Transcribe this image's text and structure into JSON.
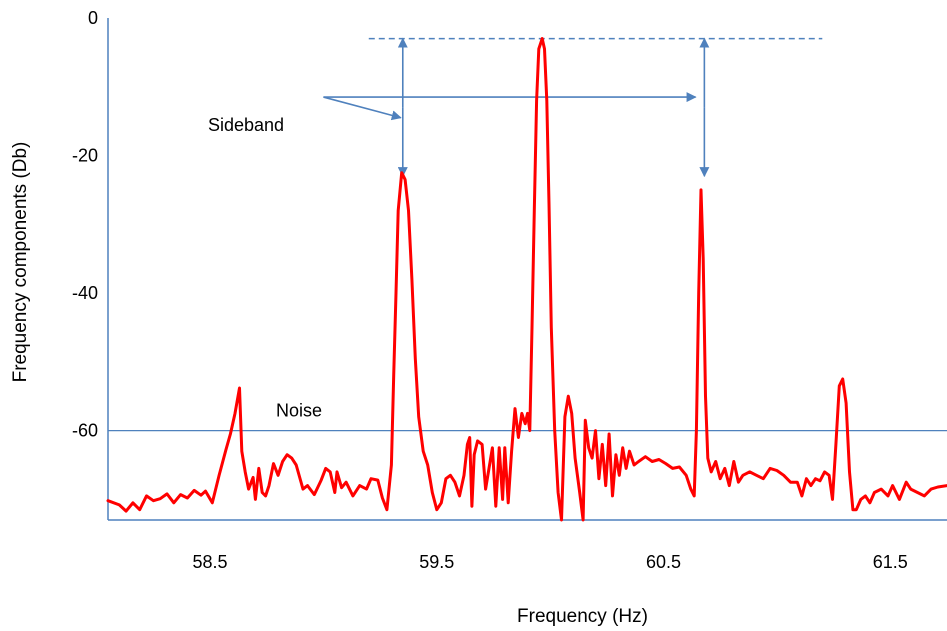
{
  "chart_data": {
    "type": "line",
    "title": "",
    "xlabel": "Frequency (Hz)",
    "ylabel": "Frequency components (Db)",
    "xlim": [
      58.05,
      61.75
    ],
    "ylim": [
      -73,
      0
    ],
    "x_ticks": [
      {
        "value": 58.5,
        "label": "58.5"
      },
      {
        "value": 59.5,
        "label": "59.5"
      },
      {
        "value": 60.5,
        "label": "60.5"
      },
      {
        "value": 61.5,
        "label": "61.5"
      }
    ],
    "y_ticks": [
      {
        "value": 0,
        "label": "0"
      },
      {
        "value": -20,
        "label": "-20"
      },
      {
        "value": -40,
        "label": "-40"
      },
      {
        "value": -60,
        "label": "-60"
      }
    ],
    "grid": false,
    "legend": "none",
    "colors": {
      "signal": "#ff0000",
      "annotation": "#4f81bd",
      "axis": "#4f81bd"
    },
    "series": [
      {
        "values": [
          [
            58.05,
            -70.2
          ],
          [
            58.1,
            -70.8
          ],
          [
            58.13,
            -71.7
          ],
          [
            58.16,
            -70.5
          ],
          [
            58.19,
            -71.5
          ],
          [
            58.22,
            -69.5
          ],
          [
            58.25,
            -70.2
          ],
          [
            58.28,
            -69.9
          ],
          [
            58.31,
            -69.2
          ],
          [
            58.34,
            -70.5
          ],
          [
            58.37,
            -69.3
          ],
          [
            58.4,
            -69.8
          ],
          [
            58.43,
            -68.7
          ],
          [
            58.46,
            -69.4
          ],
          [
            58.48,
            -68.8
          ],
          [
            58.51,
            -70.5
          ],
          [
            58.54,
            -66.5
          ],
          [
            58.57,
            -62.8
          ],
          [
            58.59,
            -60.5
          ],
          [
            58.61,
            -57.5
          ],
          [
            58.63,
            -53.8
          ],
          [
            58.64,
            -63.0
          ],
          [
            58.655,
            -66.0
          ],
          [
            58.67,
            -68.5
          ],
          [
            58.69,
            -66.8
          ],
          [
            58.7,
            -70.0
          ],
          [
            58.715,
            -65.5
          ],
          [
            58.73,
            -69.0
          ],
          [
            58.745,
            -69.5
          ],
          [
            58.76,
            -68.0
          ],
          [
            58.78,
            -64.8
          ],
          [
            58.8,
            -66.5
          ],
          [
            58.82,
            -64.5
          ],
          [
            58.84,
            -63.5
          ],
          [
            58.86,
            -64.0
          ],
          [
            58.88,
            -65.0
          ],
          [
            58.91,
            -68.5
          ],
          [
            58.93,
            -68.0
          ],
          [
            58.96,
            -69.3
          ],
          [
            58.99,
            -67.2
          ],
          [
            59.01,
            -65.5
          ],
          [
            59.03,
            -66.0
          ],
          [
            59.05,
            -69.0
          ],
          [
            59.06,
            -66.0
          ],
          [
            59.08,
            -68.3
          ],
          [
            59.1,
            -67.5
          ],
          [
            59.13,
            -69.5
          ],
          [
            59.16,
            -68.0
          ],
          [
            59.19,
            -68.5
          ],
          [
            59.21,
            -67.0
          ],
          [
            59.24,
            -67.2
          ],
          [
            59.26,
            -69.8
          ],
          [
            59.28,
            -71.5
          ],
          [
            59.3,
            -65.0
          ],
          [
            59.31,
            -52.0
          ],
          [
            59.32,
            -40.0
          ],
          [
            59.33,
            -28.0
          ],
          [
            59.345,
            -22.5
          ],
          [
            59.36,
            -23.5
          ],
          [
            59.375,
            -28.0
          ],
          [
            59.39,
            -38.0
          ],
          [
            59.405,
            -49.5
          ],
          [
            59.42,
            -58.0
          ],
          [
            59.44,
            -63.0
          ],
          [
            59.46,
            -65.0
          ],
          [
            59.48,
            -69.0
          ],
          [
            59.5,
            -71.5
          ],
          [
            59.52,
            -70.5
          ],
          [
            59.54,
            -67.0
          ],
          [
            59.56,
            -66.5
          ],
          [
            59.58,
            -67.5
          ],
          [
            59.6,
            -69.5
          ],
          [
            59.62,
            -66.5
          ],
          [
            59.635,
            -62.0
          ],
          [
            59.645,
            -61.0
          ],
          [
            59.655,
            -71.0
          ],
          [
            59.665,
            -63.5
          ],
          [
            59.68,
            -61.5
          ],
          [
            59.7,
            -62.0
          ],
          [
            59.715,
            -68.5
          ],
          [
            59.73,
            -65.5
          ],
          [
            59.745,
            -62.5
          ],
          [
            59.76,
            -71.0
          ],
          [
            59.775,
            -62.5
          ],
          [
            59.79,
            -70.0
          ],
          [
            59.8,
            -62.5
          ],
          [
            59.815,
            -70.5
          ],
          [
            59.83,
            -63.0
          ],
          [
            59.845,
            -56.8
          ],
          [
            59.86,
            -61.0
          ],
          [
            59.875,
            -57.5
          ],
          [
            59.89,
            -59.0
          ],
          [
            59.9,
            -57.5
          ],
          [
            59.91,
            -60.0
          ],
          [
            59.92,
            -45.0
          ],
          [
            59.93,
            -28.0
          ],
          [
            59.94,
            -12.0
          ],
          [
            59.95,
            -4.5
          ],
          [
            59.965,
            -3.0
          ],
          [
            59.975,
            -4.5
          ],
          [
            59.985,
            -12.0
          ],
          [
            59.995,
            -27.0
          ],
          [
            60.005,
            -45.0
          ],
          [
            60.02,
            -60.0
          ],
          [
            60.035,
            -69.0
          ],
          [
            60.05,
            -73.0
          ],
          [
            60.065,
            -58.0
          ],
          [
            60.08,
            -55.0
          ],
          [
            60.095,
            -57.5
          ],
          [
            60.11,
            -64.0
          ],
          [
            60.13,
            -69.0
          ],
          [
            60.145,
            -73.0
          ],
          [
            60.155,
            -58.5
          ],
          [
            60.17,
            -62.5
          ],
          [
            60.185,
            -64.0
          ],
          [
            60.2,
            -60.0
          ],
          [
            60.215,
            -67.0
          ],
          [
            60.23,
            -62.0
          ],
          [
            60.245,
            -68.0
          ],
          [
            60.26,
            -60.5
          ],
          [
            60.275,
            -69.5
          ],
          [
            60.29,
            -63.5
          ],
          [
            60.305,
            -66.5
          ],
          [
            60.32,
            -62.5
          ],
          [
            60.335,
            -65.5
          ],
          [
            60.35,
            -63.0
          ],
          [
            60.37,
            -65.0
          ],
          [
            60.39,
            -64.5
          ],
          [
            60.42,
            -63.8
          ],
          [
            60.45,
            -64.5
          ],
          [
            60.48,
            -64.2
          ],
          [
            60.51,
            -64.8
          ],
          [
            60.54,
            -65.5
          ],
          [
            60.57,
            -65.3
          ],
          [
            60.6,
            -66.5
          ],
          [
            60.62,
            -68.5
          ],
          [
            60.635,
            -69.5
          ],
          [
            60.645,
            -60.0
          ],
          [
            60.655,
            -40.0
          ],
          [
            60.665,
            -25.0
          ],
          [
            60.675,
            -35.0
          ],
          [
            60.685,
            -55.0
          ],
          [
            60.695,
            -64.0
          ],
          [
            60.71,
            -66.0
          ],
          [
            60.73,
            -64.5
          ],
          [
            60.75,
            -67.0
          ],
          [
            60.77,
            -65.5
          ],
          [
            60.79,
            -68.0
          ],
          [
            60.81,
            -64.5
          ],
          [
            60.83,
            -67.5
          ],
          [
            60.85,
            -66.5
          ],
          [
            60.88,
            -66.0
          ],
          [
            60.91,
            -66.5
          ],
          [
            60.94,
            -67.0
          ],
          [
            60.97,
            -65.5
          ],
          [
            61.0,
            -65.8
          ],
          [
            61.03,
            -66.5
          ],
          [
            61.06,
            -67.5
          ],
          [
            61.09,
            -67.5
          ],
          [
            61.11,
            -69.5
          ],
          [
            61.13,
            -67.0
          ],
          [
            61.15,
            -68.0
          ],
          [
            61.17,
            -67.0
          ],
          [
            61.19,
            -67.3
          ],
          [
            61.21,
            -66.0
          ],
          [
            61.23,
            -66.5
          ],
          [
            61.245,
            -70.0
          ],
          [
            61.26,
            -62.0
          ],
          [
            61.275,
            -53.5
          ],
          [
            61.29,
            -52.5
          ],
          [
            61.305,
            -56.0
          ],
          [
            61.32,
            -66.0
          ],
          [
            61.335,
            -71.5
          ],
          [
            61.35,
            -71.5
          ],
          [
            61.37,
            -70.0
          ],
          [
            61.39,
            -69.5
          ],
          [
            61.41,
            -70.5
          ],
          [
            61.43,
            -69.0
          ],
          [
            61.46,
            -68.5
          ],
          [
            61.49,
            -69.5
          ],
          [
            61.51,
            -68.0
          ],
          [
            61.54,
            -70.0
          ],
          [
            61.57,
            -67.5
          ],
          [
            61.59,
            -68.5
          ],
          [
            61.62,
            -69.0
          ],
          [
            61.65,
            -69.5
          ],
          [
            61.68,
            -68.5
          ],
          [
            61.71,
            -68.2
          ],
          [
            61.75,
            -68.0
          ]
        ]
      }
    ],
    "annotations": {
      "noise_level": -60,
      "noise_label": "Noise",
      "carrier_level": -3,
      "carrier_line_x": [
        59.2,
        61.2
      ],
      "sideband_label": "Sideband",
      "sideband_arrows": [
        {
          "x": 59.35,
          "from": -3,
          "to": -23
        },
        {
          "x": 60.68,
          "from": -3,
          "to": -23
        }
      ],
      "sideband_label_anchor": [
        59.0,
        -11.5
      ],
      "sideband_pointers": [
        {
          "x": 59.35,
          "y": -14.5
        },
        {
          "x": 60.65,
          "y": -11.5
        }
      ]
    }
  }
}
